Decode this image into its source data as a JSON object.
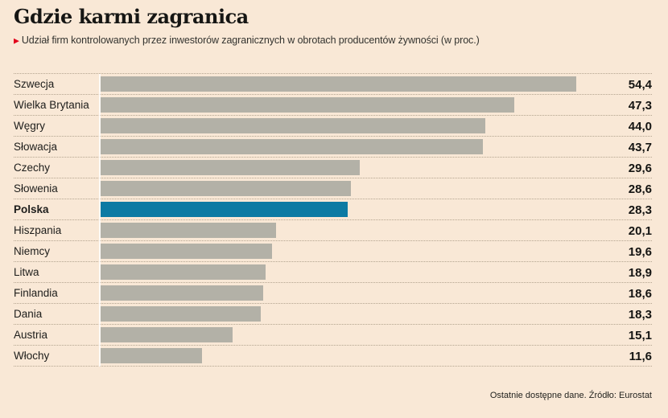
{
  "header": {
    "title": "Gdzie karmi zagranica",
    "bullet_icon": "▶",
    "subtitle": "Udział firm kontrolowanych przez inwestorów zagranicznych w obrotach producentów żywności (w proc.)"
  },
  "footer": {
    "source_note": "Ostatnie dostępne dane. Źródło: Eurostat"
  },
  "colors": {
    "background": "#f9e8d6",
    "bar_default": "#b3b1a7",
    "bar_highlight": "#0c7aa3",
    "accent_red": "#e2001a",
    "text_dark": "#1d1d1b",
    "grid_dots": "#b3a48f"
  },
  "chart_data": {
    "type": "bar",
    "orientation": "horizontal",
    "title": "Gdzie karmi zagranica",
    "subtitle": "Udział firm kontrolowanych przez inwestorów zagranicznych w obrotach producentów żywności (w proc.)",
    "unit": "proc.",
    "highlight_category": "Polska",
    "categories": [
      "Szwecja",
      "Wielka Brytania",
      "Węgry",
      "Słowacja",
      "Czechy",
      "Słowenia",
      "Polska",
      "Hiszpania",
      "Niemcy",
      "Litwa",
      "Finlandia",
      "Dania",
      "Austria",
      "Włochy"
    ],
    "values": [
      54.4,
      47.3,
      44.0,
      43.7,
      29.6,
      28.6,
      28.3,
      20.1,
      19.6,
      18.9,
      18.6,
      18.3,
      15.1,
      11.6
    ],
    "value_labels": [
      "54,4",
      "47,3",
      "44,0",
      "43,7",
      "29,6",
      "28,6",
      "28,3",
      "20,1",
      "19,6",
      "18,9",
      "18,6",
      "18,3",
      "15,1",
      "11,6"
    ],
    "xlim": [
      0,
      63
    ],
    "grid": "dotted-row-separators",
    "legend": "none",
    "value_label_position": "right-aligned-column",
    "source": "Ostatnie dostępne dane. Źródło: Eurostat"
  }
}
